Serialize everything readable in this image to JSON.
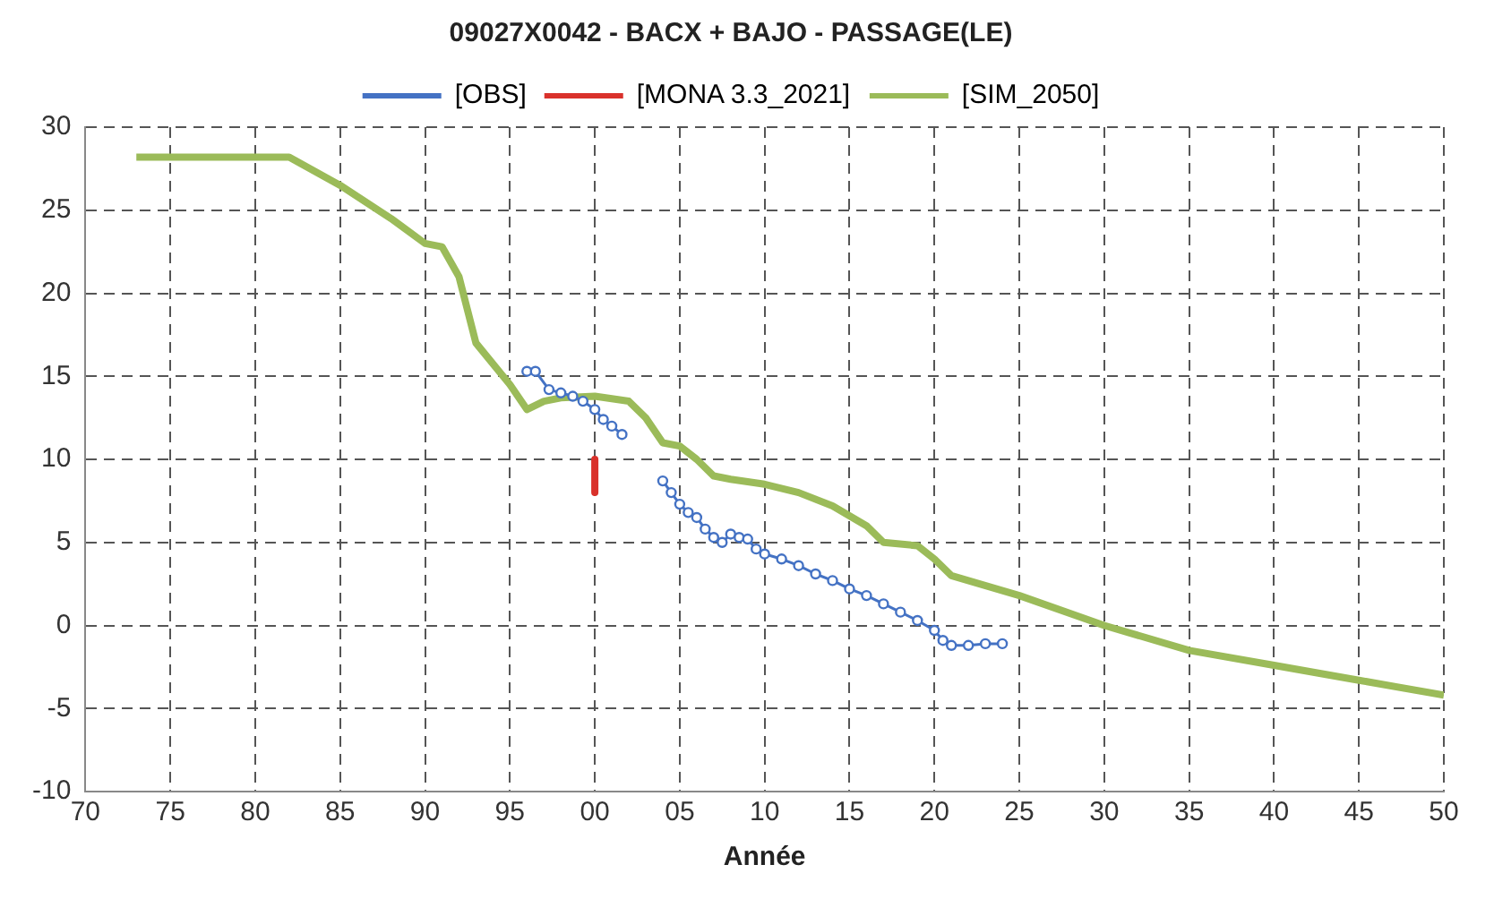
{
  "chart_data": {
    "type": "line",
    "title": "09027X0042 - BACX + BAJO - PASSAGE(LE)",
    "xlabel": "Année",
    "xlim": [
      1970,
      2050
    ],
    "xticks": [
      {
        "value": 1970,
        "label": "70"
      },
      {
        "value": 1975,
        "label": "75"
      },
      {
        "value": 1980,
        "label": "80"
      },
      {
        "value": 1985,
        "label": "85"
      },
      {
        "value": 1990,
        "label": "90"
      },
      {
        "value": 1995,
        "label": "95"
      },
      {
        "value": 2000,
        "label": "00"
      },
      {
        "value": 2005,
        "label": "05"
      },
      {
        "value": 2010,
        "label": "10"
      },
      {
        "value": 2015,
        "label": "15"
      },
      {
        "value": 2020,
        "label": "20"
      },
      {
        "value": 2025,
        "label": "25"
      },
      {
        "value": 2030,
        "label": "30"
      },
      {
        "value": 2035,
        "label": "35"
      },
      {
        "value": 2040,
        "label": "40"
      },
      {
        "value": 2045,
        "label": "45"
      },
      {
        "value": 2050,
        "label": "50"
      }
    ],
    "ylim": [
      -10,
      30
    ],
    "yticks": [
      -10,
      -5,
      0,
      5,
      10,
      15,
      20,
      25,
      30
    ],
    "grid": true,
    "legend": "top",
    "series": [
      {
        "name": "[OBS]",
        "color": "#4472c4",
        "marker": "circle",
        "x": [
          1996,
          1996.5,
          1997.3,
          1998,
          1998.7,
          1999.3,
          2000,
          2000.5,
          2001,
          2001.6,
          2003,
          2004,
          2004.5,
          2005,
          2005.5,
          2006,
          2006.5,
          2007,
          2007.5,
          2008,
          2008.5,
          2009,
          2009.5,
          2010,
          2011,
          2012,
          2013,
          2014,
          2015,
          2016,
          2017,
          2018,
          2019,
          2020,
          2020.5,
          2021,
          2022,
          2023,
          2024
        ],
        "values": [
          15.3,
          15.3,
          14.2,
          14,
          13.8,
          13.5,
          13,
          12.4,
          12,
          11.5,
          null,
          8.7,
          8,
          7.3,
          6.8,
          6.5,
          5.8,
          5.3,
          5,
          5.5,
          5.3,
          5.2,
          4.6,
          4.3,
          4,
          3.6,
          3.1,
          2.7,
          2.2,
          1.8,
          1.3,
          0.8,
          0.3,
          -0.3,
          -0.9,
          -1.2,
          -1.2,
          -1.1,
          -1.1
        ]
      },
      {
        "name": "[MONA 3.3_2021]",
        "color": "#d9312b",
        "marker": "none",
        "x": [
          2000,
          2000
        ],
        "values": [
          10,
          8
        ]
      },
      {
        "name": "[SIM_2050]",
        "color": "#9bbb59",
        "marker": "none",
        "x": [
          1973,
          1982,
          1985,
          1988,
          1990,
          1991,
          1992,
          1993,
          1995,
          1996,
          1997,
          1998,
          2000,
          2002,
          2003,
          2004,
          2005,
          2006,
          2007,
          2008,
          2010,
          2012,
          2014,
          2016,
          2017,
          2019,
          2020,
          2021,
          2025,
          2030,
          2035,
          2040,
          2045,
          2050
        ],
        "values": [
          28.2,
          28.2,
          26.5,
          24.5,
          23,
          22.8,
          21,
          17,
          14.5,
          13,
          13.5,
          13.7,
          13.8,
          13.5,
          12.5,
          11,
          10.8,
          10,
          9,
          8.8,
          8.5,
          8,
          7.2,
          6,
          5,
          4.8,
          4,
          3,
          1.8,
          0,
          -1.5,
          -2.4,
          -3.3,
          -4.2
        ]
      }
    ]
  }
}
